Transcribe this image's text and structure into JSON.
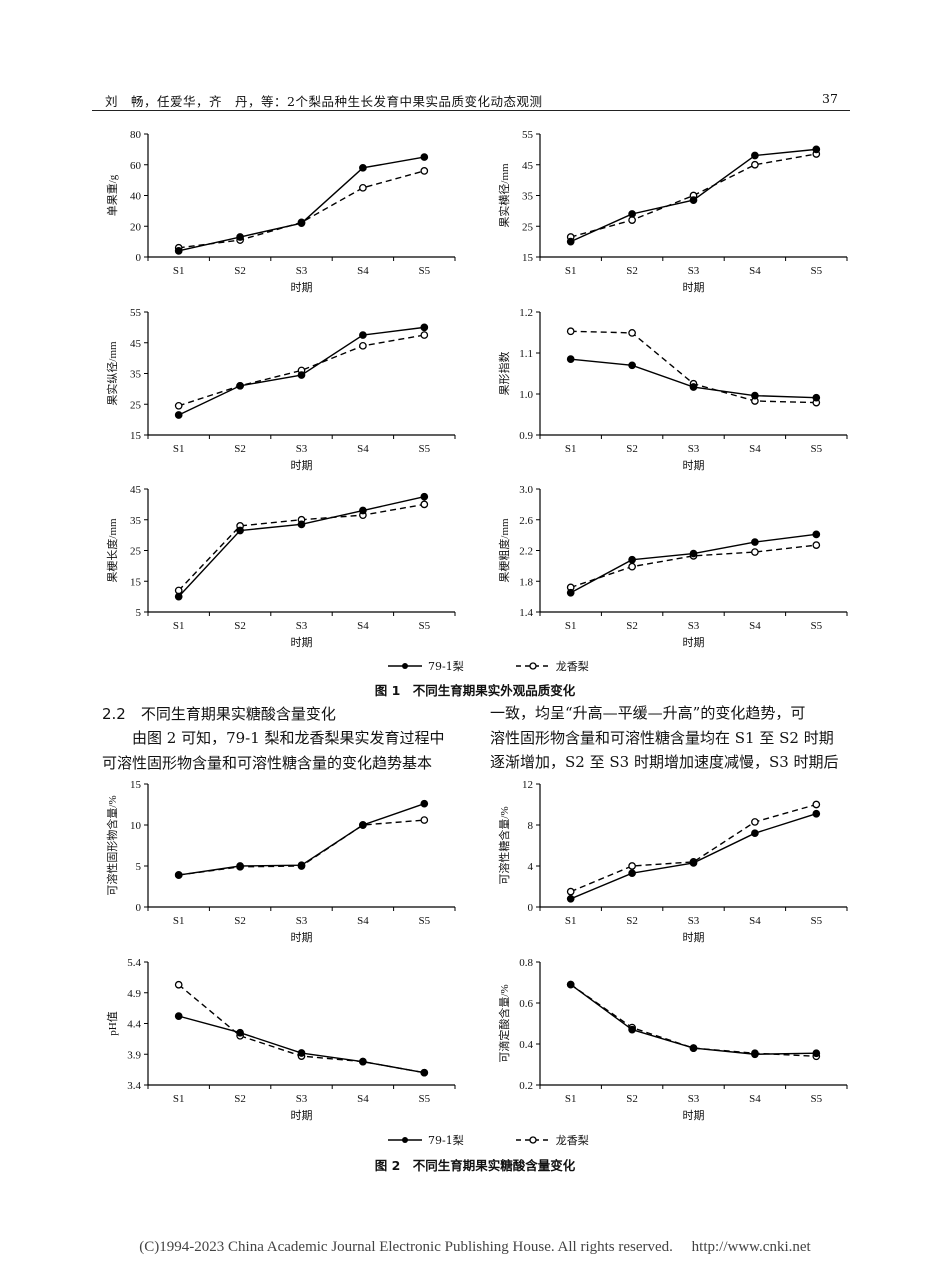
{
  "header": {
    "running_title": "刘　畅，任爱华，齐　丹，等：2个梨品种生长发育中果实品质变化动态观测",
    "page_number": "37"
  },
  "legend": {
    "series_a": "79-1梨",
    "series_b": "龙香梨"
  },
  "figure1": {
    "caption": "图 1　不同生育期果实外观品质变化"
  },
  "figure2": {
    "caption": "图 2　不同生育期果实糖酸含量变化"
  },
  "section": {
    "heading": "2.2　不同生育期果实糖酸含量变化",
    "left_lines": [
      "由图 2 可知，79-1 梨和龙香梨果实发育过程中",
      "可溶性固形物含量和可溶性糖含量的变化趋势基本"
    ],
    "right_lines": [
      "一致，均呈“升高—平缓—升高”的变化趋势，可",
      "溶性固形物含量和可溶性糖含量均在 S1 至 S2 时期",
      "逐渐增加，S2 至 S3 时期增加速度减慢，S3 时期后"
    ]
  },
  "footer": "(C)1994-2023 China Academic Journal Electronic Publishing House. All rights reserved.　 http://www.cnki.net",
  "chart_data": [
    {
      "id": "fruit-weight",
      "type": "line",
      "xlabel": "时期",
      "ylabel": "单果重/g",
      "categories": [
        "S1",
        "S2",
        "S3",
        "S4",
        "S5"
      ],
      "ylim": [
        0,
        80
      ],
      "yticks": [
        0,
        20,
        40,
        60,
        80
      ],
      "series": [
        {
          "name": "79-1梨",
          "values": [
            4,
            13,
            22,
            58,
            65
          ]
        },
        {
          "name": "龙香梨",
          "values": [
            6,
            11,
            22.5,
            45,
            56
          ]
        }
      ]
    },
    {
      "id": "transverse-diameter",
      "type": "line",
      "xlabel": "时期",
      "ylabel": "果实横径/mm",
      "categories": [
        "S1",
        "S2",
        "S3",
        "S4",
        "S5"
      ],
      "ylim": [
        15,
        55
      ],
      "yticks": [
        15,
        25,
        35,
        45,
        55
      ],
      "series": [
        {
          "name": "79-1梨",
          "values": [
            20,
            29,
            33.5,
            48,
            50
          ]
        },
        {
          "name": "龙香梨",
          "values": [
            21.5,
            27,
            35,
            45,
            48.5
          ]
        }
      ]
    },
    {
      "id": "longitudinal-diameter",
      "type": "line",
      "xlabel": "时期",
      "ylabel": "果实纵径/mm",
      "categories": [
        "S1",
        "S2",
        "S3",
        "S4",
        "S5"
      ],
      "ylim": [
        15,
        55
      ],
      "yticks": [
        15,
        25,
        35,
        45,
        55
      ],
      "series": [
        {
          "name": "79-1梨",
          "values": [
            21.5,
            31,
            34.5,
            47.5,
            50
          ]
        },
        {
          "name": "龙香梨",
          "values": [
            24.5,
            31,
            36,
            44,
            47.5
          ]
        }
      ]
    },
    {
      "id": "shape-index",
      "type": "line",
      "xlabel": "时期",
      "ylabel": "果形指数",
      "categories": [
        "S1",
        "S2",
        "S3",
        "S4",
        "S5"
      ],
      "ylim": [
        0.9,
        1.2
      ],
      "yticks": [
        "0.9",
        "1.0",
        "1.1",
        "1.2"
      ],
      "series": [
        {
          "name": "79-1梨",
          "values": [
            1.085,
            1.07,
            1.017,
            0.996,
            0.991
          ]
        },
        {
          "name": "龙香梨",
          "values": [
            1.153,
            1.149,
            1.025,
            0.983,
            0.979
          ]
        }
      ]
    },
    {
      "id": "stalk-length",
      "type": "line",
      "xlabel": "时期",
      "ylabel": "果梗长度/mm",
      "categories": [
        "S1",
        "S2",
        "S3",
        "S4",
        "S5"
      ],
      "ylim": [
        5,
        45
      ],
      "yticks": [
        5,
        15,
        25,
        35,
        45
      ],
      "series": [
        {
          "name": "79-1梨",
          "values": [
            10,
            31.5,
            33.5,
            38,
            42.5
          ]
        },
        {
          "name": "龙香梨",
          "values": [
            12,
            33,
            35,
            36.5,
            40
          ]
        }
      ]
    },
    {
      "id": "stalk-thickness",
      "type": "line",
      "xlabel": "时期",
      "ylabel": "果梗粗度/mm",
      "categories": [
        "S1",
        "S2",
        "S3",
        "S4",
        "S5"
      ],
      "ylim": [
        1.4,
        3.0
      ],
      "yticks": [
        "1.4",
        "1.8",
        "2.2",
        "2.6",
        "3.0"
      ],
      "series": [
        {
          "name": "79-1梨",
          "values": [
            1.65,
            2.08,
            2.16,
            2.31,
            2.41
          ]
        },
        {
          "name": "龙香梨",
          "values": [
            1.72,
            1.99,
            2.13,
            2.18,
            2.27
          ]
        }
      ]
    },
    {
      "id": "soluble-solids",
      "type": "line",
      "xlabel": "时期",
      "ylabel": "可溶性固形物含量/%",
      "categories": [
        "S1",
        "S2",
        "S3",
        "S4",
        "S5"
      ],
      "ylim": [
        0,
        15
      ],
      "yticks": [
        0,
        5,
        10,
        15
      ],
      "series": [
        {
          "name": "79-1梨",
          "values": [
            3.9,
            5.0,
            5.1,
            10.0,
            12.6
          ]
        },
        {
          "name": "龙香梨",
          "values": [
            3.9,
            4.9,
            5.0,
            10.0,
            10.6
          ]
        }
      ]
    },
    {
      "id": "soluble-sugar",
      "type": "line",
      "xlabel": "时期",
      "ylabel": "可溶性糖含量/%",
      "categories": [
        "S1",
        "S2",
        "S3",
        "S4",
        "S5"
      ],
      "ylim": [
        0,
        12
      ],
      "yticks": [
        0,
        4,
        8,
        12
      ],
      "series": [
        {
          "name": "79-1梨",
          "values": [
            0.8,
            3.3,
            4.3,
            7.2,
            9.1
          ]
        },
        {
          "name": "龙香梨",
          "values": [
            1.5,
            4.0,
            4.4,
            8.3,
            10.0
          ]
        }
      ]
    },
    {
      "id": "ph-value",
      "type": "line",
      "xlabel": "时期",
      "ylabel": "pH值",
      "categories": [
        "S1",
        "S2",
        "S3",
        "S4",
        "S5"
      ],
      "ylim": [
        3.4,
        5.4
      ],
      "yticks": [
        "3.4",
        "3.9",
        "4.4",
        "4.9",
        "5.4"
      ],
      "series": [
        {
          "name": "79-1梨",
          "values": [
            4.52,
            4.25,
            3.92,
            3.78,
            3.6
          ]
        },
        {
          "name": "龙香梨",
          "values": [
            5.03,
            4.2,
            3.87,
            3.78,
            3.6
          ]
        }
      ]
    },
    {
      "id": "titratable-acid",
      "type": "line",
      "xlabel": "时期",
      "ylabel": "可滴定酸含量/%",
      "categories": [
        "S1",
        "S2",
        "S3",
        "S4",
        "S5"
      ],
      "ylim": [
        0.2,
        0.8
      ],
      "yticks": [
        "0.2",
        "0.4",
        "0.6",
        "0.8"
      ],
      "series": [
        {
          "name": "79-1梨",
          "values": [
            0.69,
            0.47,
            0.38,
            0.35,
            0.355
          ]
        },
        {
          "name": "龙香梨",
          "values": [
            0.69,
            0.48,
            0.38,
            0.355,
            0.34
          ]
        }
      ]
    }
  ]
}
